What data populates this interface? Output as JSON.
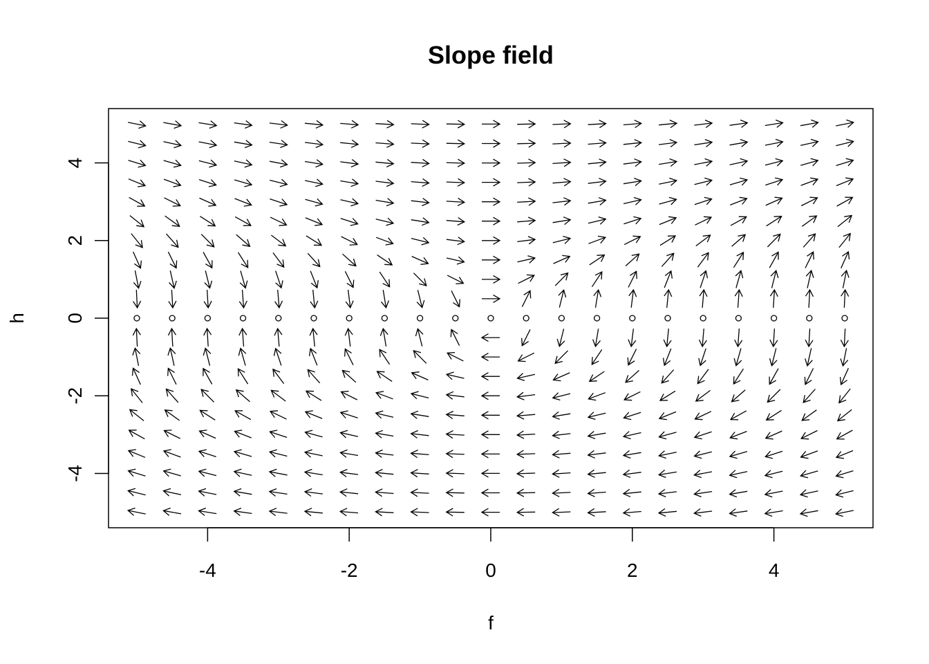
{
  "chart_data": {
    "type": "vector_field",
    "title": "Slope field",
    "xlabel": "f",
    "ylabel": "h",
    "xlim": [
      -5.4,
      5.4
    ],
    "ylim": [
      -5.4,
      5.4
    ],
    "xticks": [
      -4,
      -2,
      0,
      2,
      4
    ],
    "yticks": [
      -4,
      -2,
      0,
      2,
      4
    ],
    "xtick_labels": [
      "-4",
      "-2",
      "0",
      "2",
      "4"
    ],
    "ytick_labels": [
      "-4",
      "-2",
      "0",
      "2",
      "4"
    ],
    "grid": false,
    "legend": "none",
    "grid_f": [
      -5,
      -4.5,
      -4,
      -3.5,
      -3,
      -2.5,
      -2,
      -1.5,
      -1,
      -0.5,
      0,
      0.5,
      1,
      1.5,
      2,
      2.5,
      3,
      3.5,
      4,
      4.5,
      5
    ],
    "grid_h": [
      -5,
      -4.5,
      -4,
      -3.5,
      -3,
      -2.5,
      -2,
      -1.5,
      -1,
      -0.5,
      0,
      0.5,
      1,
      1.5,
      2,
      2.5,
      3,
      3.5,
      4,
      4.5,
      5
    ],
    "field": {
      "df": "h",
      "dh": "f/h"
    },
    "arrow_color": "#000000"
  }
}
